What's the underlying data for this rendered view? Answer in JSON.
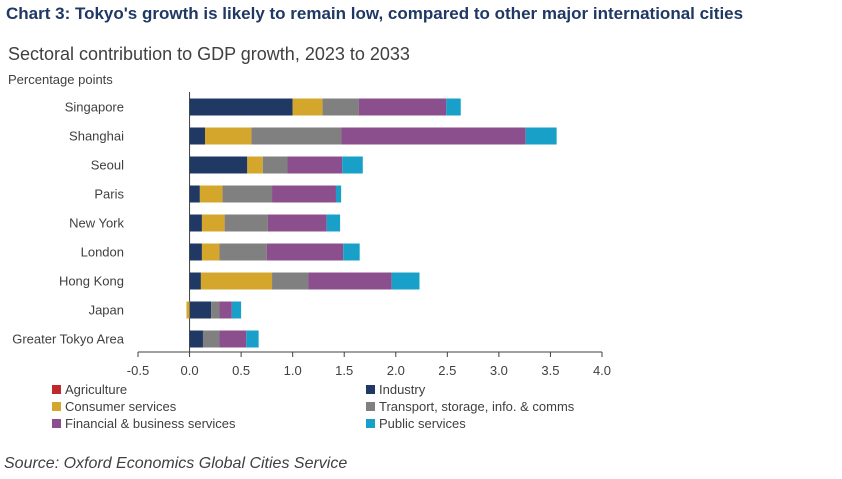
{
  "title": "Chart 3: Tokyo's growth is likely to remain low, compared to other major international cities",
  "subtitle": "Sectoral contribution to GDP growth, 2023 to 2033",
  "unit_label": "Percentage points",
  "source": "Source: Oxford Economics Global Cities Service",
  "chart_data": {
    "type": "bar",
    "orientation": "horizontal",
    "stacked": true,
    "categories": [
      "Singapore",
      "Shanghai",
      "Seoul",
      "Paris",
      "New York",
      "London",
      "Hong Kong",
      "Japan",
      "Greater Tokyo Area"
    ],
    "x_ticks": [
      "-0.5",
      "0.0",
      "0.5",
      "1.0",
      "1.5",
      "2.0",
      "2.5",
      "3.0",
      "3.5",
      "4.0"
    ],
    "xlim": [
      -0.5,
      4.0
    ],
    "grid": false,
    "legend_position": "bottom",
    "series": [
      {
        "name": "Agriculture",
        "color": "#c0282d",
        "values": [
          0,
          0,
          0,
          0,
          0,
          0,
          0,
          0,
          0
        ]
      },
      {
        "name": "Industry",
        "color": "#1f3864",
        "values": [
          1.0,
          0.15,
          0.56,
          0.1,
          0.12,
          0.12,
          0.11,
          0.21,
          0.13
        ]
      },
      {
        "name": "Consumer services",
        "color": "#d4a72c",
        "values": [
          0.29,
          0.45,
          0.15,
          0.22,
          0.22,
          0.17,
          0.69,
          -0.03,
          0.0
        ]
      },
      {
        "name": "Transport, storage, info. & comms",
        "color": "#808080",
        "values": [
          0.35,
          0.87,
          0.24,
          0.48,
          0.42,
          0.46,
          0.35,
          0.08,
          0.16
        ]
      },
      {
        "name": "Financial & business services",
        "color": "#8c4f8e",
        "values": [
          0.85,
          1.79,
          0.53,
          0.62,
          0.57,
          0.74,
          0.81,
          0.12,
          0.26
        ]
      },
      {
        "name": "Public services",
        "color": "#18a0c8",
        "values": [
          0.14,
          0.3,
          0.2,
          0.05,
          0.13,
          0.16,
          0.27,
          0.09,
          0.12
        ]
      }
    ]
  }
}
